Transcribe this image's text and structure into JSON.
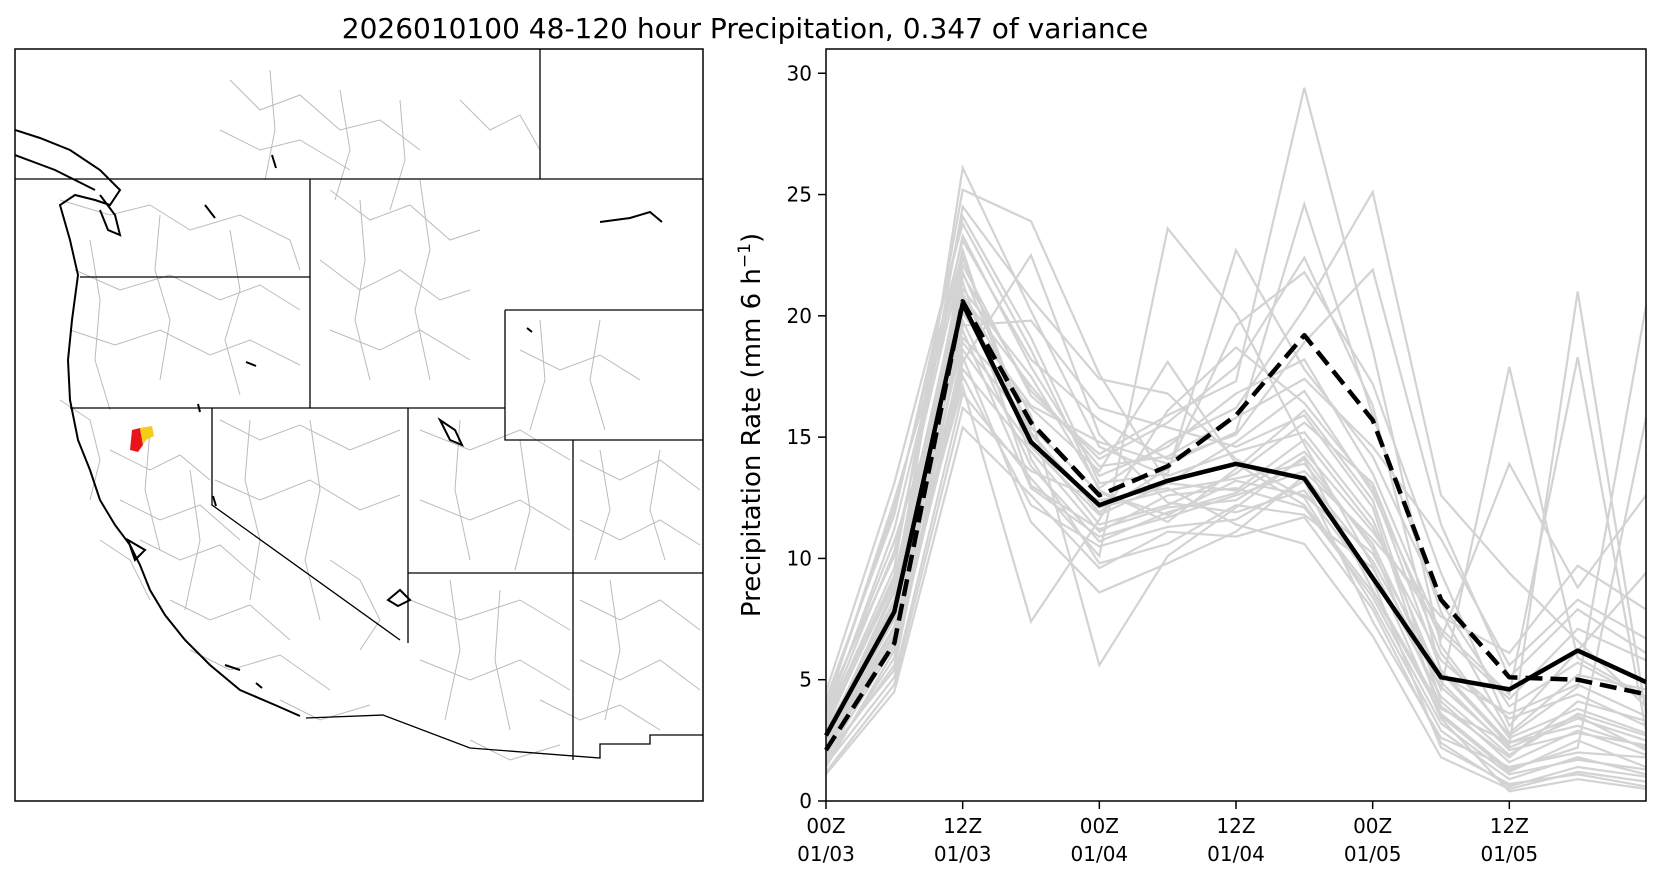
{
  "title": "2026010100 48-120 hour Precipitation, 0.347 of variance",
  "map": {
    "region": "Western United States",
    "highlight_colors": [
      "#e8141c",
      "#f4cc1a"
    ],
    "basin_line_color": "#bbbbbb",
    "coast_line_color": "#000000"
  },
  "chart_data": {
    "type": "line",
    "title": "",
    "xlabel": "",
    "ylabel": "Precipitation Rate (mm 6 h",
    "ylabel_sup": "−1",
    "ylabel_close": ")",
    "ylim": [
      0,
      31
    ],
    "yticks": [
      0,
      5,
      10,
      15,
      20,
      25,
      30
    ],
    "x_hours": [
      0,
      6,
      12,
      18,
      24,
      30,
      36,
      42,
      48,
      54,
      60,
      66,
      72
    ],
    "xticks": [
      {
        "hour": 0,
        "line1": "00Z",
        "line2": "01/03"
      },
      {
        "hour": 12,
        "line1": "12Z",
        "line2": "01/03"
      },
      {
        "hour": 24,
        "line1": "00Z",
        "line2": "01/04"
      },
      {
        "hour": 36,
        "line1": "12Z",
        "line2": "01/04"
      },
      {
        "hour": 48,
        "line1": "00Z",
        "line2": "01/05"
      },
      {
        "hour": 60,
        "line1": "12Z",
        "line2": "01/05"
      }
    ],
    "grid": false,
    "series": [
      {
        "style": "solid-black",
        "values": [
          2.7,
          7.8,
          20.5,
          14.8,
          12.2,
          13.2,
          13.9,
          13.3,
          9.2,
          5.1,
          4.6,
          6.2,
          4.9
        ]
      },
      {
        "style": "dashed-black",
        "values": [
          2.1,
          6.5,
          20.6,
          15.6,
          12.6,
          13.8,
          15.9,
          19.2,
          15.7,
          8.3,
          5.1,
          5.0,
          4.4
        ]
      }
    ],
    "ensemble": {
      "color": "#d3d3d3",
      "members": [
        [
          3.1,
          9.0,
          21.4,
          13.0,
          11.2,
          12.1,
          12.4,
          14.1,
          8.7,
          3.8,
          2.4,
          3.1,
          2.2
        ],
        [
          2.2,
          7.6,
          18.9,
          15.4,
          12.7,
          11.8,
          13.2,
          12.6,
          10.2,
          5.2,
          3.6,
          4.8,
          3.5
        ],
        [
          4.0,
          10.1,
          23.3,
          17.9,
          13.4,
          14.6,
          16.8,
          18.2,
          13.5,
          6.9,
          4.2,
          7.1,
          5.8
        ],
        [
          1.4,
          6.2,
          17.5,
          12.2,
          10.5,
          11.3,
          11.6,
          13.2,
          7.4,
          2.6,
          1.4,
          2.0,
          1.8
        ],
        [
          2.8,
          8.3,
          20.1,
          16.3,
          14.8,
          13.9,
          15.2,
          24.6,
          15.9,
          7.8,
          2.8,
          5.2,
          4.6
        ],
        [
          3.5,
          11.2,
          22.7,
          14.1,
          9.8,
          10.6,
          12.2,
          11.8,
          9.6,
          4.3,
          1.9,
          3.6,
          2.7
        ],
        [
          1.9,
          5.4,
          19.6,
          19.8,
          16.2,
          15.4,
          14.6,
          15.9,
          12.1,
          3.5,
          1.2,
          2.5,
          1.4
        ],
        [
          2.6,
          8.8,
          24.5,
          20.7,
          17.4,
          16.8,
          14.1,
          12.5,
          8.1,
          2.9,
          0.9,
          1.8,
          1.1
        ],
        [
          3.8,
          12.4,
          21.8,
          15.2,
          11.9,
          13.7,
          19.6,
          21.8,
          17.2,
          9.4,
          3.1,
          6.2,
          9.4
        ],
        [
          1.2,
          4.8,
          16.2,
          13.6,
          12.4,
          12.9,
          11.4,
          10.6,
          6.8,
          1.8,
          0.5,
          1.2,
          0.8
        ],
        [
          2.4,
          7.2,
          18.3,
          11.5,
          8.6,
          9.8,
          11.1,
          13.4,
          9.9,
          4.7,
          2.2,
          3.4,
          2.5
        ],
        [
          3.3,
          9.6,
          25.2,
          23.9,
          17.6,
          13.1,
          12.8,
          14.9,
          11.3,
          5.8,
          3.4,
          4.4,
          3.1
        ],
        [
          2.1,
          6.8,
          20.8,
          17.1,
          13.8,
          14.2,
          15.8,
          17.4,
          14.6,
          10.8,
          5.6,
          8.3,
          6.7
        ],
        [
          4.5,
          13.1,
          23.8,
          18.6,
          12.8,
          11.5,
          13.7,
          16.1,
          12.4,
          4.1,
          1.6,
          2.9,
          1.9
        ],
        [
          1.6,
          5.9,
          17.8,
          14.4,
          11.1,
          12.6,
          12.9,
          12.1,
          8.4,
          3.2,
          1.1,
          1.7,
          1.3
        ],
        [
          2.9,
          8.1,
          22.1,
          16.7,
          14.3,
          15.9,
          17.3,
          29.4,
          18.6,
          6.4,
          2.6,
          3.8,
          2.8
        ],
        [
          3.7,
          10.7,
          19.4,
          12.9,
          10.9,
          11.7,
          12.6,
          13.6,
          10.8,
          7.6,
          6.1,
          9.7,
          7.9
        ],
        [
          1.8,
          6.4,
          18.1,
          22.5,
          15.1,
          12.3,
          11.9,
          12.8,
          9.1,
          2.2,
          0.7,
          1.1,
          0.6
        ],
        [
          2.5,
          7.9,
          26.1,
          20.2,
          14.6,
          13.4,
          14.4,
          15.2,
          11.6,
          4.9,
          2.1,
          2.8,
          2.3
        ],
        [
          3.2,
          9.3,
          20.9,
          15.9,
          5.6,
          10.1,
          12.1,
          14.2,
          10.4,
          3.9,
          1.8,
          4.1,
          3.3
        ],
        [
          2.3,
          7.1,
          17.1,
          7.4,
          11.6,
          16.1,
          18.7,
          16.4,
          12.9,
          5.4,
          2.4,
          3.5,
          2.1
        ],
        [
          4.2,
          11.8,
          24.1,
          19.1,
          13.1,
          13.5,
          22.7,
          17.8,
          14.2,
          8.2,
          3.9,
          5.7,
          4.2
        ],
        [
          1.5,
          5.1,
          16.8,
          13.3,
          10.1,
          23.6,
          20.1,
          14.7,
          9.7,
          3.4,
          0.4,
          0.9,
          0.5
        ],
        [
          2.7,
          8.6,
          21.1,
          17.5,
          12.9,
          14.8,
          16.2,
          20.3,
          25.1,
          12.6,
          9.4,
          6.6,
          3.9
        ],
        [
          3.4,
          10.3,
          22.4,
          14.9,
          11.4,
          12.2,
          13.5,
          15.6,
          13.1,
          6.1,
          2.7,
          4.7,
          20.4
        ],
        [
          1.1,
          4.5,
          15.4,
          12.6,
          9.6,
          11.1,
          10.9,
          11.7,
          7.9,
          2.4,
          0.6,
          1.4,
          1.0
        ],
        [
          2.0,
          6.6,
          19.1,
          16.2,
          13.6,
          18.1,
          13.9,
          12.2,
          8.6,
          3.6,
          1.3,
          2.2,
          15.8
        ],
        [
          3.9,
          12.1,
          23.1,
          18.2,
          15.7,
          14.1,
          15.1,
          18.9,
          21.9,
          11.4,
          5.1,
          7.9,
          6.1
        ],
        [
          2.4,
          7.5,
          20.3,
          15.1,
          12.1,
          12.8,
          13.3,
          13.9,
          10.6,
          4.6,
          17.9,
          5.9,
          4.3
        ],
        [
          1.7,
          5.6,
          18.6,
          14.6,
          11.8,
          13.1,
          14.8,
          16.9,
          12.7,
          6.7,
          13.9,
          8.8,
          12.6
        ],
        [
          3.0,
          9.2,
          21.7,
          16.9,
          14.1,
          15.6,
          17.9,
          22.4,
          16.3,
          5.3,
          2.3,
          21.0,
          3.6
        ],
        [
          2.2,
          6.9,
          19.8,
          13.8,
          10.7,
          11.9,
          12.7,
          14.4,
          11.1,
          7.1,
          4.4,
          18.3,
          2.9
        ]
      ]
    }
  }
}
